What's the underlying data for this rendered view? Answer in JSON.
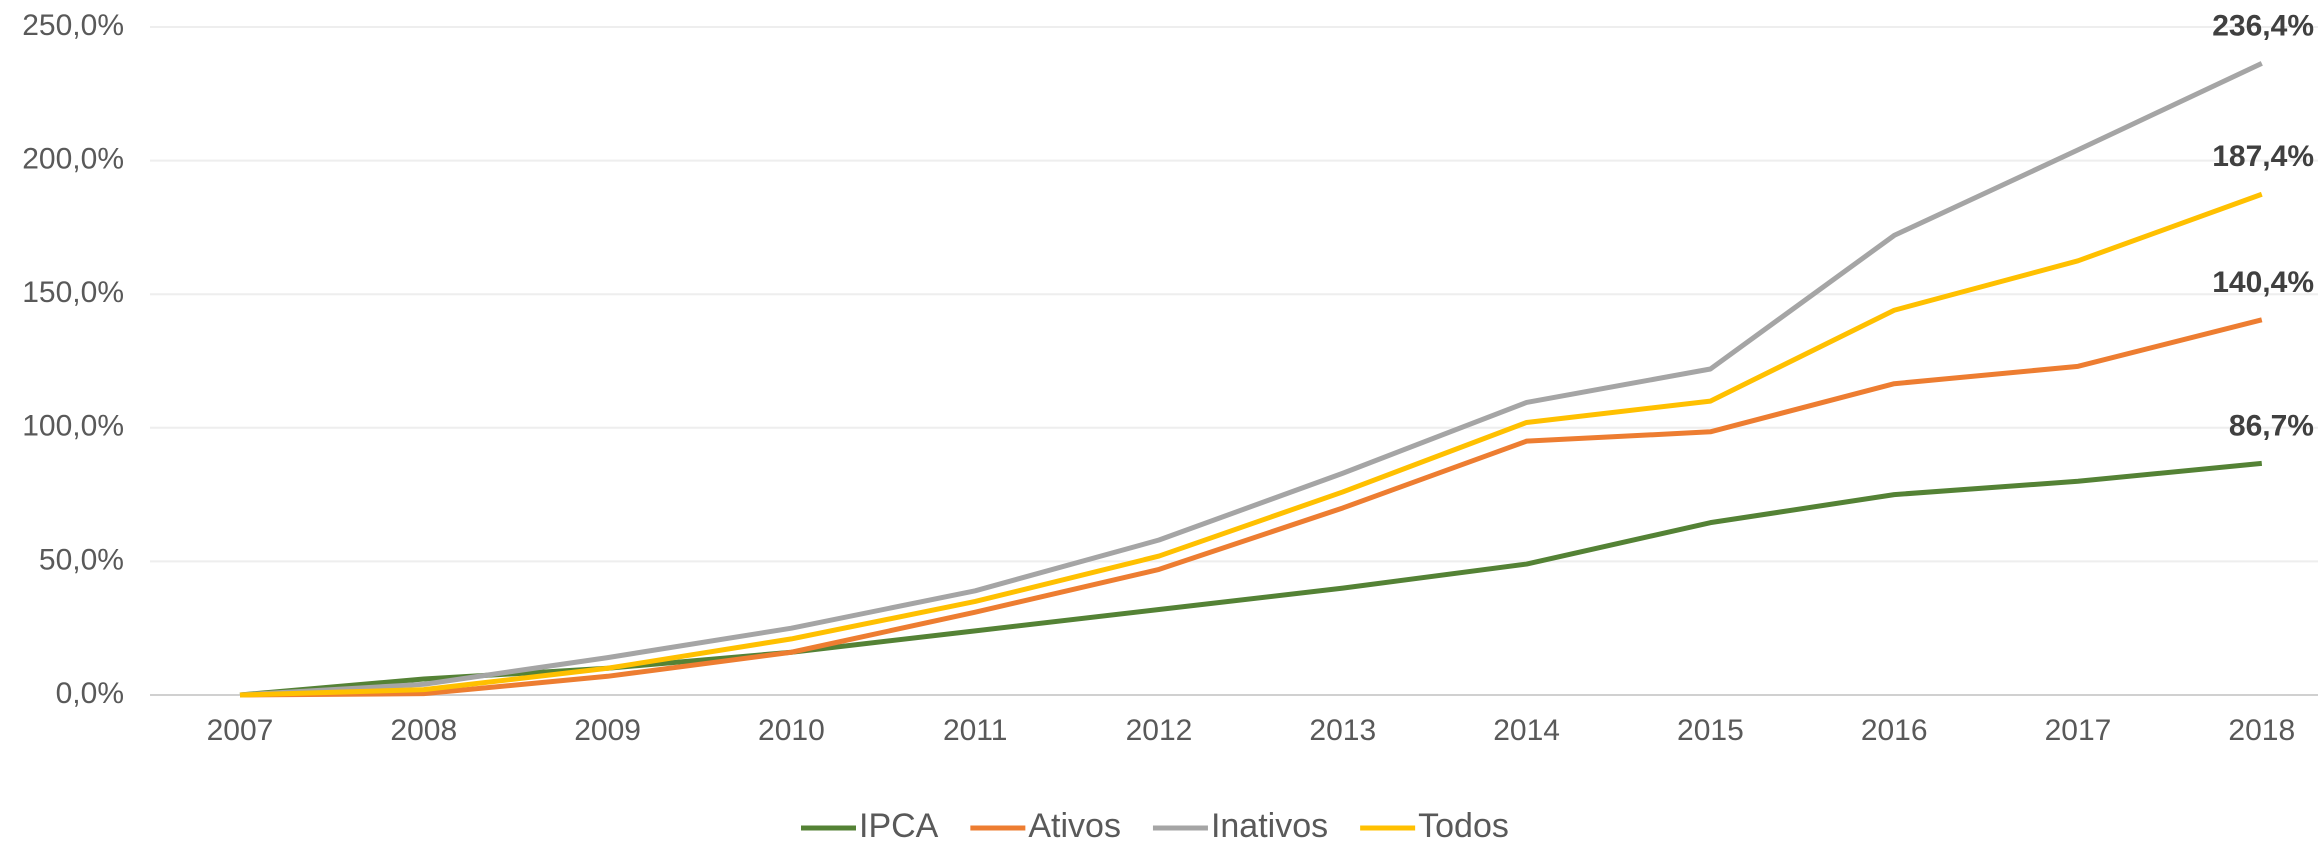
{
  "chart_data": {
    "type": "line",
    "categories": [
      "2007",
      "2008",
      "2009",
      "2010",
      "2011",
      "2012",
      "2013",
      "2014",
      "2015",
      "2016",
      "2017",
      "2018"
    ],
    "series": [
      {
        "name": "IPCA",
        "color": "#548235",
        "values": [
          0,
          6,
          10,
          16,
          24,
          32,
          40,
          49,
          64.5,
          75,
          80,
          86.7
        ],
        "value_labels": [
          null,
          null,
          null,
          null,
          null,
          null,
          null,
          null,
          null,
          null,
          null,
          "86,7%"
        ]
      },
      {
        "name": "Ativos",
        "color": "#ed7d31",
        "values": [
          0,
          0.5,
          7,
          16,
          31,
          47,
          70,
          95,
          98.5,
          116.5,
          123,
          140.4
        ],
        "value_labels": [
          null,
          null,
          null,
          null,
          null,
          null,
          null,
          null,
          null,
          null,
          null,
          "140,4%"
        ]
      },
      {
        "name": "Inativos",
        "color": "#a5a5a5",
        "values": [
          0,
          4,
          14,
          25,
          39,
          58,
          83,
          109.5,
          122,
          172,
          204,
          236.4
        ],
        "value_labels": [
          null,
          null,
          null,
          null,
          null,
          null,
          null,
          null,
          null,
          null,
          null,
          "236,4%"
        ]
      },
      {
        "name": "Todos",
        "color": "#ffc000",
        "values": [
          0,
          2,
          10,
          21,
          35,
          52,
          76,
          102,
          110,
          144,
          162.5,
          187.4
        ],
        "value_labels": [
          null,
          null,
          null,
          null,
          null,
          null,
          null,
          null,
          null,
          null,
          null,
          "187,4%"
        ]
      }
    ],
    "ylim": [
      0,
      250
    ],
    "yticks": [
      {
        "value": 0,
        "label": "0,0%"
      },
      {
        "value": 50,
        "label": "50,0%"
      },
      {
        "value": 100,
        "label": "100,0%"
      },
      {
        "value": 150,
        "label": "150,0%"
      },
      {
        "value": 200,
        "label": "200,0%"
      },
      {
        "value": 250,
        "label": "250,0%"
      }
    ],
    "grid": true,
    "legend": "bottom"
  }
}
